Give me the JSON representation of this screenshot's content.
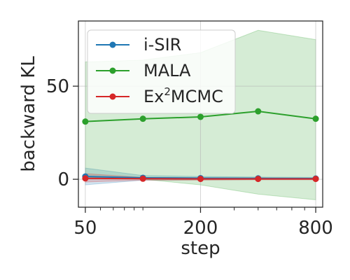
{
  "chart_data": {
    "type": "line",
    "xscale": "log",
    "x": [
      50,
      100,
      200,
      400,
      800
    ],
    "xticks": [
      50,
      200,
      800
    ],
    "xtick_labels": [
      "50",
      "200",
      "800"
    ],
    "xlabel": "step",
    "ylabel": "backward KL",
    "yticks": [
      0,
      50
    ],
    "ytick_labels": [
      "0",
      "50"
    ],
    "xlim": [
      46,
      870
    ],
    "ylim": [
      -15,
      85
    ],
    "grid": true,
    "legend_position": "top-left",
    "series": [
      {
        "name": "i-SIR",
        "legend_html": "i-SIR",
        "color": "#1f77b4",
        "values": [
          1.5,
          0.8,
          0.6,
          0.5,
          0.4
        ],
        "band_low": [
          -3,
          -0.5,
          -0.3,
          -0.2,
          -0.2
        ],
        "band_high": [
          6,
          2,
          1.5,
          1.2,
          1
        ]
      },
      {
        "name": "MALA",
        "legend_html": "MALA",
        "color": "#2ca02c",
        "values": [
          31,
          32.5,
          33.5,
          36.5,
          32.5
        ],
        "band_low": [
          1,
          0,
          -3,
          -8,
          -11
        ],
        "band_high": [
          63,
          64,
          68,
          80,
          75
        ]
      },
      {
        "name": "Ex2MCMC",
        "legend_pre": "Ex",
        "legend_sup": "2",
        "legend_post": "MCMC",
        "color": "#d62728",
        "values": [
          0.5,
          0.3,
          0.2,
          0.2,
          0.2
        ],
        "band_low": [
          -1.5,
          -0.5,
          -0.5,
          -0.3,
          -0.3
        ],
        "band_high": [
          3,
          1,
          0.8,
          0.7,
          0.6
        ]
      }
    ]
  }
}
